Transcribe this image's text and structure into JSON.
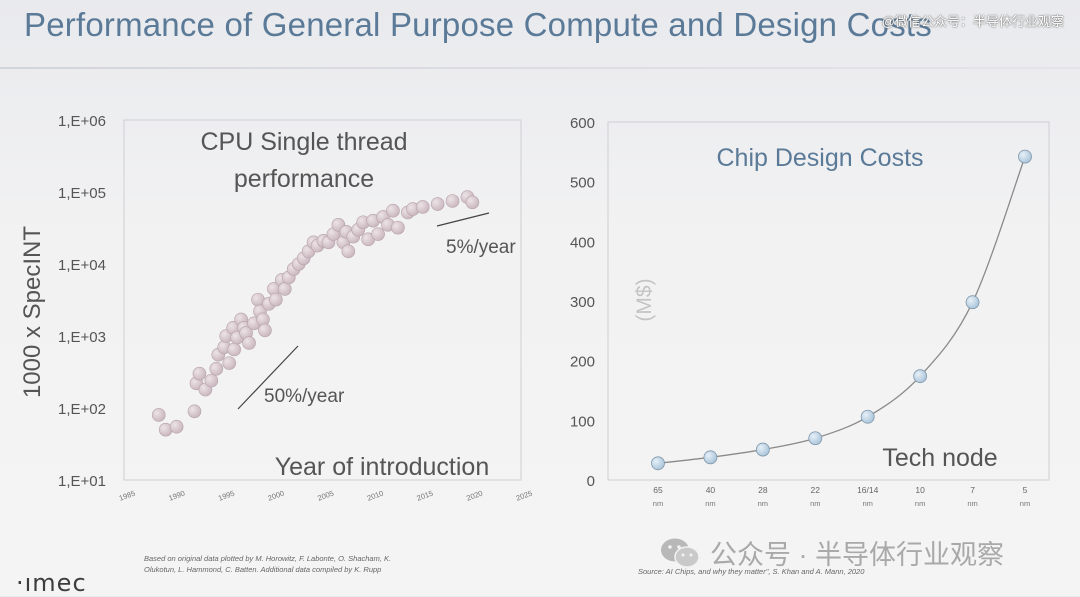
{
  "title": "Performance of General Purpose Compute and Design Costs",
  "watermark_top": "@微信公众号：半导体行业观察",
  "watermark_bottom": "公众号 · 半导体行业观察",
  "logo": "·ımec",
  "colors": {
    "title": "#5a7a98",
    "left_points": "#c9b5bd",
    "right_points": "#a9c3d9",
    "right_line": "#8a8a8a"
  },
  "left_source": [
    "Based on original data plotted by M. Horowitz, F. Labonte, O. Shacham, K.",
    "Olukotun, L. Hammond, C. Batten. Additional data compiled by K. Rupp"
  ],
  "right_source": "Source: AI Chips, and why they matter\", S. Khan and A. Mann, 2020",
  "chart_data": [
    {
      "type": "scatter",
      "title": "CPU Single thread performance",
      "title_lines": [
        "CPU Single thread",
        "performance"
      ],
      "xlabel": "Year of introduction",
      "ylabel": "1000 x SpecINT",
      "yscale": "log",
      "xlim": [
        1985,
        2025
      ],
      "ylim": [
        10,
        1000000
      ],
      "xticks": [
        1985,
        1990,
        1995,
        2000,
        2005,
        2010,
        2015,
        2020,
        2025
      ],
      "ytick_labels": [
        "1,E+06",
        "1,E+05",
        "1,E+04",
        "1,E+03",
        "1,E+02",
        "1,E+01"
      ],
      "ytick_values": [
        1000000,
        100000,
        10000,
        1000,
        100,
        10
      ],
      "annotations": [
        "50%/year",
        "5%/year"
      ],
      "points": [
        [
          1988.5,
          80
        ],
        [
          1989.2,
          50
        ],
        [
          1990.3,
          55
        ],
        [
          1992.1,
          90
        ],
        [
          1992.3,
          220
        ],
        [
          1992.6,
          300
        ],
        [
          1993.2,
          180
        ],
        [
          1993.8,
          240
        ],
        [
          1994.3,
          350
        ],
        [
          1994.5,
          550
        ],
        [
          1995.1,
          700
        ],
        [
          1995.3,
          1000
        ],
        [
          1995.6,
          420
        ],
        [
          1996.0,
          1300
        ],
        [
          1996.1,
          650
        ],
        [
          1996.4,
          950
        ],
        [
          1996.8,
          1700
        ],
        [
          1997.1,
          1300
        ],
        [
          1997.3,
          1100
        ],
        [
          1997.6,
          800
        ],
        [
          1998.1,
          1500
        ],
        [
          1998.5,
          3200
        ],
        [
          1998.7,
          2200
        ],
        [
          1999.0,
          1700
        ],
        [
          1999.2,
          1200
        ],
        [
          1999.6,
          2800
        ],
        [
          2000.1,
          4500
        ],
        [
          2000.3,
          3200
        ],
        [
          2000.9,
          6000
        ],
        [
          2001.2,
          4500
        ],
        [
          2001.6,
          6500
        ],
        [
          2002.1,
          8500
        ],
        [
          2002.6,
          10000
        ],
        [
          2003.1,
          12000
        ],
        [
          2003.6,
          15000
        ],
        [
          2004.1,
          20000
        ],
        [
          2004.5,
          18000
        ],
        [
          2005.1,
          21000
        ],
        [
          2005.6,
          20000
        ],
        [
          2006.1,
          26000
        ],
        [
          2006.6,
          35000
        ],
        [
          2007.1,
          20000
        ],
        [
          2007.4,
          28000
        ],
        [
          2007.6,
          15000
        ],
        [
          2008.1,
          24000
        ],
        [
          2008.6,
          30000
        ],
        [
          2009.1,
          38000
        ],
        [
          2009.6,
          22000
        ],
        [
          2010.1,
          40000
        ],
        [
          2010.6,
          26000
        ],
        [
          2011.1,
          45000
        ],
        [
          2011.6,
          35000
        ],
        [
          2012.1,
          55000
        ],
        [
          2012.6,
          32000
        ],
        [
          2013.6,
          52000
        ],
        [
          2014.1,
          58000
        ],
        [
          2015.1,
          62000
        ],
        [
          2016.6,
          68000
        ],
        [
          2018.1,
          75000
        ],
        [
          2019.6,
          85000
        ],
        [
          2020.1,
          72000
        ]
      ]
    },
    {
      "type": "line",
      "title": "Chip Design Costs",
      "xlabel": "Tech node",
      "ylabel": "(M$)",
      "ylim": [
        0,
        600
      ],
      "yticks": [
        0,
        100,
        200,
        300,
        400,
        500,
        600
      ],
      "categories": [
        {
          "value": "65",
          "unit": "nm"
        },
        {
          "value": "40",
          "unit": "nm"
        },
        {
          "value": "28",
          "unit": "nm"
        },
        {
          "value": "22",
          "unit": "nm"
        },
        {
          "value": "16/14",
          "unit": "nm"
        },
        {
          "value": "10",
          "unit": "nm"
        },
        {
          "value": "7",
          "unit": "nm"
        },
        {
          "value": "5",
          "unit": "nm"
        }
      ],
      "values": [
        28,
        38,
        51,
        70,
        106,
        174,
        298,
        542
      ]
    }
  ]
}
